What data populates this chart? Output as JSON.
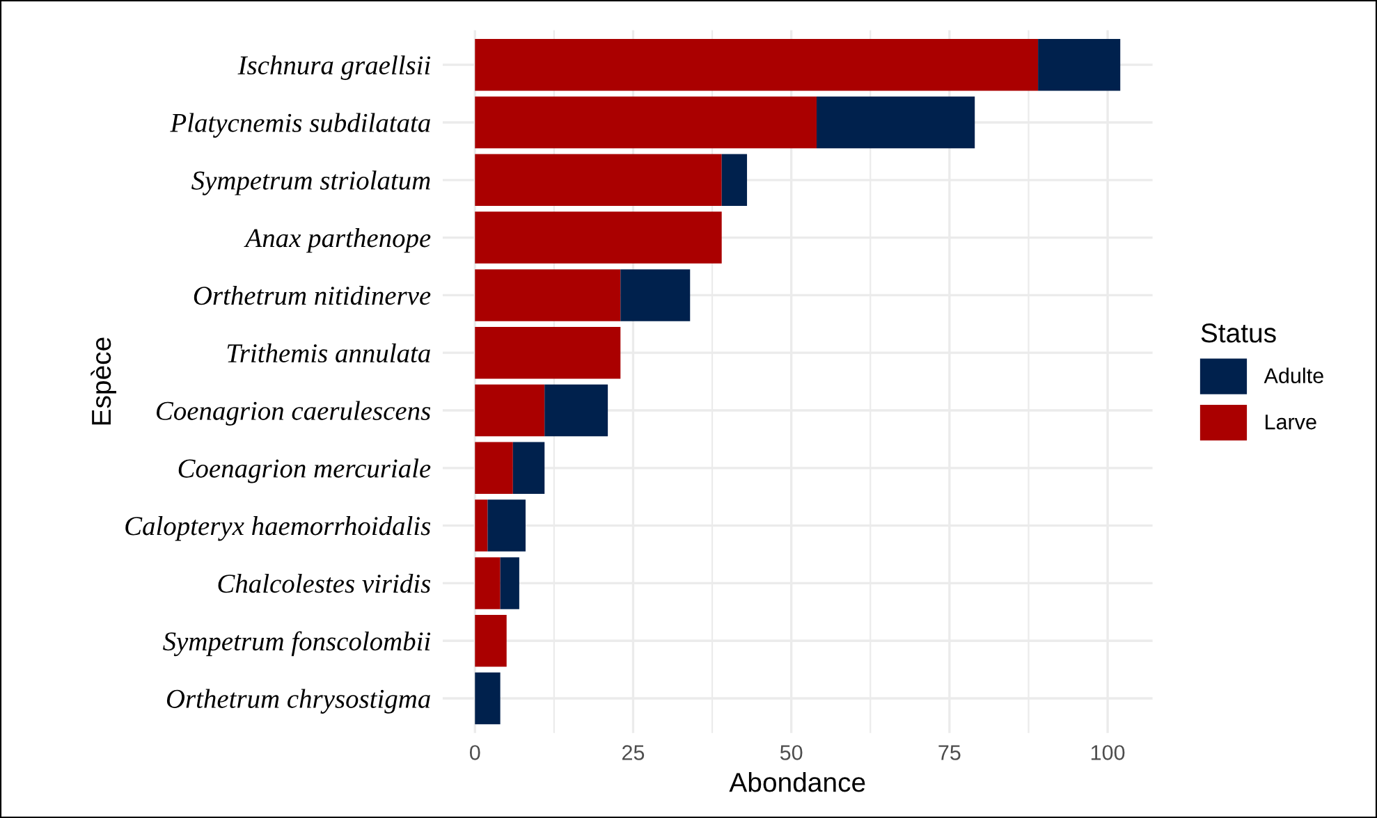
{
  "chart_data": {
    "type": "bar",
    "orientation": "horizontal",
    "stacked": true,
    "xlabel": "Abondance",
    "ylabel": "Espèce",
    "legend_title": "Status",
    "legend": "right",
    "grid": true,
    "categories": [
      "Ischnura graellsii",
      "Platycnemis subdilatata",
      "Sympetrum striolatum",
      "Anax parthenope",
      "Orthetrum nitidinerve",
      "Trithemis annulata",
      "Coenagrion caerulescens",
      "Coenagrion mercuriale",
      "Calopteryx haemorrhoidalis",
      "Chalcolestes viridis",
      "Sympetrum fonscolombii",
      "Orthetrum chrysostigma"
    ],
    "series": [
      {
        "name": "Larve",
        "color": "#aa0000",
        "values": [
          89,
          54,
          39,
          39,
          23,
          23,
          11,
          6,
          2,
          4,
          5,
          0
        ]
      },
      {
        "name": "Adulte",
        "color": "#00214d",
        "values": [
          13,
          25,
          4,
          0,
          11,
          0,
          10,
          5,
          6,
          3,
          0,
          4
        ]
      }
    ],
    "xlim": [
      -5.1,
      107.1
    ],
    "xticks": [
      0,
      25,
      50,
      75,
      100
    ]
  }
}
